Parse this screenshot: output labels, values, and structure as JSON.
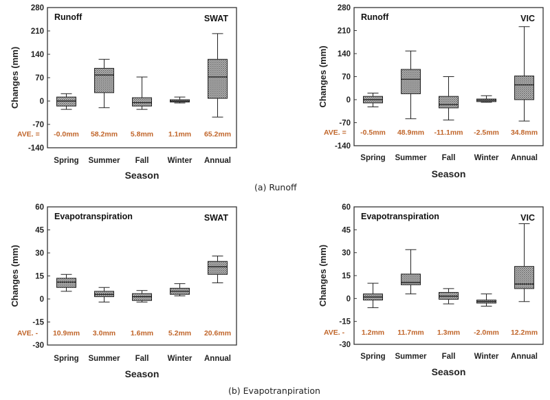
{
  "captions": {
    "runoff": "(a) Runoff",
    "et": "(b) Evapotranpiration"
  },
  "ave_label_colon": "AVE. =",
  "ave_label_dash": "AVE. -",
  "hatch_color": "#8a8a8a",
  "ave_color": "#c0652a",
  "chart_data": [
    {
      "type": "box",
      "panel": "runoff-swat",
      "title": "Runoff",
      "model": "SWAT",
      "xlabel": "Season",
      "ylabel": "Changes (mm)",
      "ylim": [
        -140,
        280
      ],
      "yticks": [
        "280",
        "210",
        "140",
        "70",
        "0",
        "-70",
        "-140"
      ],
      "ytick_values": [
        280,
        210,
        140,
        70,
        0,
        -70,
        -140
      ],
      "categories": [
        "Spring",
        "Summer",
        "Fall",
        "Winter",
        "Annual"
      ],
      "boxes": [
        {
          "min": -25,
          "q1": -15,
          "median": 0,
          "q3": 12,
          "max": 22
        },
        {
          "min": -20,
          "q1": 25,
          "median": 78,
          "q3": 98,
          "max": 125
        },
        {
          "min": -25,
          "q1": -15,
          "median": -5,
          "q3": 10,
          "max": 72
        },
        {
          "min": -6,
          "q1": -3,
          "median": 0,
          "q3": 4,
          "max": 12
        },
        {
          "min": -48,
          "q1": 8,
          "median": 72,
          "q3": 125,
          "max": 202
        }
      ],
      "averages": [
        "-0.0mm",
        "58.2mm",
        "5.8mm",
        "1.1mm",
        "65.2mm"
      ],
      "ave_label_style": "colon"
    },
    {
      "type": "box",
      "panel": "runoff-vic",
      "title": "Runoff",
      "model": "VIC",
      "xlabel": "Season",
      "ylabel": "Changes (mm)",
      "ylim": [
        -140,
        280
      ],
      "yticks": [
        "280",
        "210",
        "140",
        "70",
        "0",
        "-70",
        "-140"
      ],
      "ytick_values": [
        280,
        210,
        140,
        70,
        0,
        -70,
        -140
      ],
      "categories": [
        "Spring",
        "Summer",
        "Fall",
        "Winter",
        "Annual"
      ],
      "boxes": [
        {
          "min": -22,
          "q1": -10,
          "median": 0,
          "q3": 10,
          "max": 20
        },
        {
          "min": -58,
          "q1": 18,
          "median": 62,
          "q3": 92,
          "max": 148
        },
        {
          "min": -62,
          "q1": -25,
          "median": -15,
          "q3": 10,
          "max": 70
        },
        {
          "min": -8,
          "q1": -6,
          "median": -2,
          "q3": 2,
          "max": 12
        },
        {
          "min": -65,
          "q1": 0,
          "median": 45,
          "q3": 72,
          "max": 222
        }
      ],
      "averages": [
        "-0.5mm",
        "48.9mm",
        "-11.1mm",
        "-2.5mm",
        "34.8mm"
      ],
      "ave_label_style": "colon"
    },
    {
      "type": "box",
      "panel": "et-swat",
      "title": "Evapotranspiration",
      "model": "SWAT",
      "xlabel": "Season",
      "ylabel": "Changes (mm)",
      "ylim": [
        -30,
        60
      ],
      "yticks": [
        "60",
        "45",
        "30",
        "15",
        "0",
        "-15",
        "-30"
      ],
      "ytick_values": [
        60,
        45,
        30,
        15,
        0,
        -15,
        -30
      ],
      "categories": [
        "Spring",
        "Summer",
        "Fall",
        "Winter",
        "Annual"
      ],
      "boxes": [
        {
          "min": 5,
          "q1": 7.5,
          "median": 11,
          "q3": 13.5,
          "max": 16
        },
        {
          "min": -2,
          "q1": 1.5,
          "median": 3,
          "q3": 5,
          "max": 7.5
        },
        {
          "min": -2,
          "q1": -1,
          "median": 1.5,
          "q3": 3.5,
          "max": 5.5
        },
        {
          "min": 2,
          "q1": 3,
          "median": 5,
          "q3": 7,
          "max": 10
        },
        {
          "min": 10.5,
          "q1": 16,
          "median": 21,
          "q3": 24.5,
          "max": 28
        }
      ],
      "averages": [
        "10.9mm",
        "3.0mm",
        "1.6mm",
        "5.2mm",
        "20.6mm"
      ],
      "ave_label_style": "dash"
    },
    {
      "type": "box",
      "panel": "et-vic",
      "title": "Evapotranspiration",
      "model": "VIC",
      "xlabel": "Season",
      "ylabel": "Changes (mm)",
      "ylim": [
        -30,
        60
      ],
      "yticks": [
        "60",
        "45",
        "30",
        "15",
        "0",
        "-15",
        "-30"
      ],
      "ytick_values": [
        60,
        45,
        30,
        15,
        0,
        -15,
        -30
      ],
      "categories": [
        "Spring",
        "Summer",
        "Fall",
        "Winter",
        "Annual"
      ],
      "boxes": [
        {
          "min": -6,
          "q1": -1,
          "median": 1,
          "q3": 3,
          "max": 10
        },
        {
          "min": 3,
          "q1": 9,
          "median": 10.5,
          "q3": 16,
          "max": 32
        },
        {
          "min": -3.5,
          "q1": -0.5,
          "median": 1.5,
          "q3": 4,
          "max": 6.5
        },
        {
          "min": -5,
          "q1": -3,
          "median": -2,
          "q3": -1,
          "max": 3
        },
        {
          "min": -2,
          "q1": 6.5,
          "median": 9.5,
          "q3": 21,
          "max": 49
        }
      ],
      "averages": [
        "1.2mm",
        "11.7mm",
        "1.3mm",
        "-2.0mm",
        "12.2mm"
      ],
      "ave_label_style": "dash"
    }
  ]
}
